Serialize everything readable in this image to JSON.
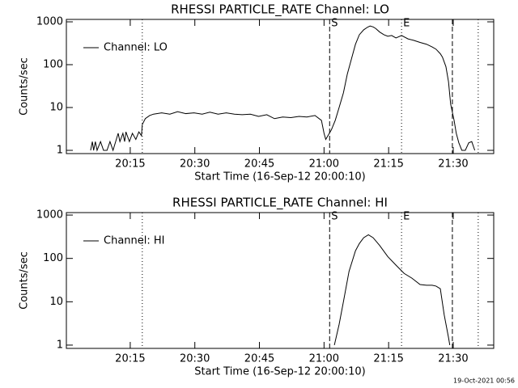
{
  "chart_data": [
    {
      "type": "line",
      "title": "RHESSI PARTICLE_RATE Channel: LO",
      "xlabel": "Start Time (16-Sep-12 20:00:10)",
      "ylabel": "Counts/sec",
      "ylog": true,
      "legend": "upper left",
      "xlim": [
        0.17,
        99.4
      ],
      "xticks": [
        {
          "value": 15,
          "label": "20:15"
        },
        {
          "value": 30,
          "label": "20:30"
        },
        {
          "value": 45,
          "label": "20:45"
        },
        {
          "value": 60,
          "label": "21:00"
        },
        {
          "value": 75,
          "label": "21:15"
        },
        {
          "value": 90,
          "label": "21:30"
        }
      ],
      "ylim": [
        0.84,
        1140
      ],
      "yticks": [
        1,
        10,
        100,
        1000
      ],
      "markers": [
        {
          "x": 17.8,
          "style": "dotted"
        },
        {
          "x": 61.3,
          "style": "dashed",
          "label": "S"
        },
        {
          "x": 78.0,
          "style": "dotted",
          "label": "E"
        },
        {
          "x": 89.8,
          "style": "dashed"
        },
        {
          "x": 95.8,
          "style": "dotted"
        }
      ],
      "x": [
        5.8,
        6.2,
        6.5,
        6.9,
        7.3,
        8.1,
        8.8,
        9.6,
        10.3,
        11.0,
        12.2,
        12.6,
        13.3,
        13.7,
        14.0,
        14.8,
        15.5,
        16.3,
        17.0,
        17.6,
        17.8,
        18.5,
        19.5,
        20.4,
        22.3,
        24.2,
        26.0,
        27.9,
        29.8,
        31.7,
        33.5,
        35.4,
        37.3,
        39.2,
        41.0,
        42.9,
        44.8,
        46.7,
        48.5,
        50.4,
        52.3,
        54.2,
        56.0,
        57.9,
        59.4,
        60.0,
        60.4,
        60.9,
        61.7,
        62.6,
        63.5,
        64.5,
        65.4,
        66.4,
        67.3,
        68.2,
        69.2,
        70.1,
        70.7,
        71.4,
        72.0,
        72.9,
        73.9,
        74.8,
        75.7,
        76.7,
        78.0,
        79.5,
        80.8,
        82.3,
        83.8,
        85.1,
        86.0,
        87.0,
        87.5,
        88.3,
        88.9,
        89.4,
        90.2,
        90.7,
        91.3,
        92.0,
        92.8,
        93.6,
        94.3,
        95.0
      ],
      "series": [
        {
          "name": "Channel: LO",
          "color": "#000000",
          "values": [
            1,
            1.6,
            1,
            1.6,
            1,
            1.6,
            1,
            1,
            1.6,
            1,
            2.5,
            1.6,
            2.5,
            1.6,
            2.7,
            1.6,
            2.5,
            1.8,
            2.7,
            2.2,
            4,
            5.5,
            6.5,
            7,
            7.5,
            7,
            8,
            7.2,
            7.5,
            7,
            7.8,
            7,
            7.5,
            7,
            6.8,
            7,
            6.2,
            6.8,
            5.5,
            6,
            5.8,
            6.2,
            6,
            6.5,
            5,
            2.5,
            1.8,
            2.2,
            3,
            5,
            10,
            22,
            60,
            140,
            300,
            500,
            650,
            750,
            800,
            760,
            700,
            580,
            500,
            460,
            480,
            420,
            480,
            400,
            370,
            330,
            300,
            260,
            230,
            180,
            150,
            90,
            40,
            12,
            5,
            2.5,
            1.5,
            1,
            1,
            1.5,
            1.6,
            1
          ]
        }
      ]
    },
    {
      "type": "line",
      "title": "RHESSI PARTICLE_RATE Channel: HI",
      "xlabel": "Start Time (16-Sep-12 20:00:10)",
      "ylabel": "Counts/sec",
      "ylog": true,
      "legend": "upper left",
      "xlim": [
        0.17,
        99.4
      ],
      "xticks": [
        {
          "value": 15,
          "label": "20:15"
        },
        {
          "value": 30,
          "label": "20:30"
        },
        {
          "value": 45,
          "label": "20:45"
        },
        {
          "value": 60,
          "label": "21:00"
        },
        {
          "value": 75,
          "label": "21:15"
        },
        {
          "value": 90,
          "label": "21:30"
        }
      ],
      "ylim": [
        0.84,
        1140
      ],
      "yticks": [
        1,
        10,
        100,
        1000
      ],
      "markers": [
        {
          "x": 17.8,
          "style": "dotted"
        },
        {
          "x": 61.3,
          "style": "dashed",
          "label": "S"
        },
        {
          "x": 78.0,
          "style": "dotted",
          "label": "E"
        },
        {
          "x": 89.8,
          "style": "dashed"
        },
        {
          "x": 95.8,
          "style": "dotted"
        }
      ],
      "x": [
        62.4,
        63.5,
        64.5,
        65.8,
        67.3,
        68.2,
        69.2,
        70.3,
        71.4,
        72.9,
        74.8,
        76.7,
        78.6,
        80.4,
        82.3,
        83.8,
        85.1,
        86.0,
        87.0,
        87.9,
        88.9,
        89.2
      ],
      "series": [
        {
          "name": "Channel: HI",
          "color": "#000000",
          "values": [
            1,
            3,
            10,
            50,
            150,
            220,
            300,
            350,
            300,
            200,
            110,
            70,
            45,
            35,
            25,
            24,
            24,
            23,
            20,
            5,
            1.5,
            1
          ]
        }
      ]
    }
  ],
  "footer": "19-Oct-2021 00:56"
}
